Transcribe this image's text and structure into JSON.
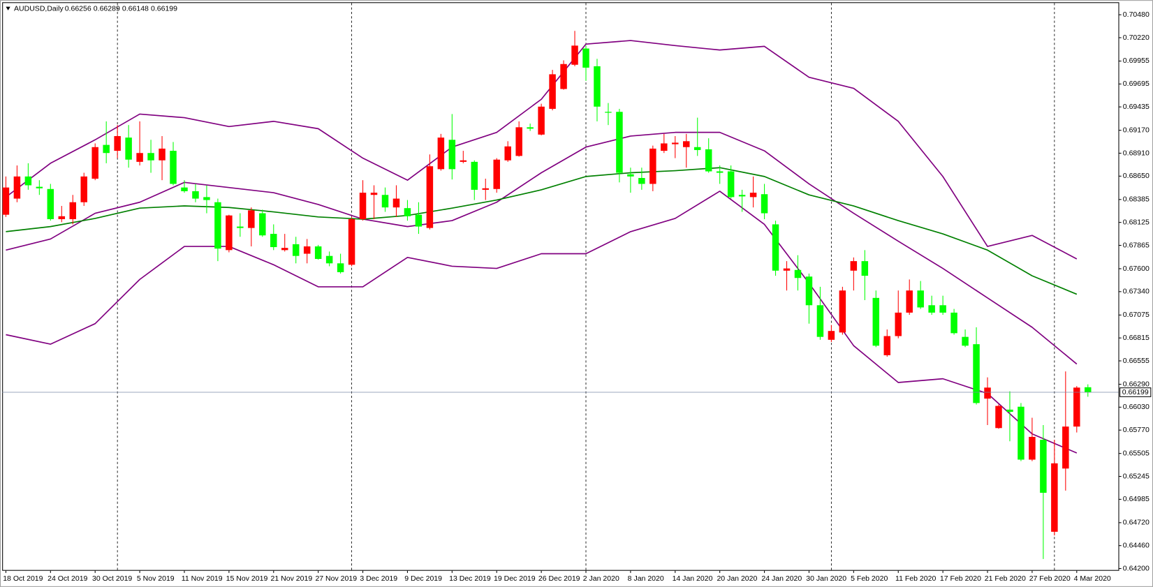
{
  "chart_data": {
    "type": "candlestick",
    "title": "AUDUSD,Daily",
    "up_color": "#ff0000",
    "down_color": "#00ff00",
    "grid": false,
    "ylim": [
      0.64175,
      0.70613
    ],
    "yticks": [
      {
        "value": 0.7048,
        "label": "0.70480"
      },
      {
        "value": 0.7022,
        "label": "0.70220"
      },
      0.69955,
      0.69695,
      0.69435,
      {
        "value": 0.6917,
        "label": "0.69170"
      },
      {
        "value": 0.6891,
        "label": "0.68910"
      },
      {
        "value": 0.6865,
        "label": "0.68650"
      },
      0.68385,
      0.68125,
      0.67865,
      {
        "value": 0.676,
        "label": "0.67600"
      },
      {
        "value": 0.6734,
        "label": "0.67340"
      },
      0.67075,
      0.66815,
      0.66555,
      {
        "value": 0.6629,
        "label": "0.66290"
      },
      {
        "value": 0.6603,
        "label": "0.66030"
      },
      {
        "value": 0.6577,
        "label": "0.65770"
      },
      0.65505,
      0.65245,
      0.64985,
      {
        "value": 0.6472,
        "label": "0.64720"
      },
      {
        "value": 0.6446,
        "label": "0.64460"
      },
      {
        "value": 0.642,
        "label": "0.64200"
      }
    ],
    "categories": [
      "18 Oct 2019",
      null,
      null,
      null,
      "24 Oct 2019",
      null,
      null,
      null,
      "30 Oct 2019",
      null,
      null,
      null,
      "5 Nov 2019",
      null,
      null,
      null,
      "11 Nov 2019",
      null,
      null,
      null,
      "15 Nov 2019",
      null,
      null,
      null,
      "21 Nov 2019",
      null,
      null,
      null,
      "27 Nov 2019",
      null,
      null,
      null,
      "3 Dec 2019",
      null,
      null,
      null,
      "9 Dec 2019",
      null,
      null,
      null,
      "13 Dec 2019",
      null,
      null,
      null,
      "19 Dec 2019",
      null,
      null,
      null,
      "26 Dec 2019",
      null,
      null,
      null,
      "2 Jan 2020",
      null,
      null,
      null,
      "8 Jan 2020",
      null,
      null,
      null,
      "14 Jan 2020",
      null,
      null,
      null,
      "20 Jan 2020",
      null,
      null,
      null,
      "24 Jan 2020",
      null,
      null,
      null,
      "30 Jan 2020",
      null,
      null,
      null,
      "5 Feb 2020",
      null,
      null,
      null,
      "11 Feb 2020",
      null,
      null,
      null,
      "17 Feb 2020",
      null,
      null,
      null,
      "21 Feb 2020",
      null,
      null,
      null,
      "27 Feb 2020",
      null,
      null,
      null,
      "4 Mar 2020",
      null
    ],
    "open": [
      0.68212,
      0.68395,
      0.68646,
      0.68529,
      0.68504,
      0.68162,
      0.68162,
      0.68354,
      0.68621,
      0.69004,
      0.68937,
      0.69087,
      0.68812,
      0.68912,
      0.68829,
      0.68937,
      0.68521,
      0.68479,
      0.68412,
      0.68354,
      0.67811,
      0.68078,
      0.68062,
      0.68229,
      0.67995,
      0.67811,
      0.67878,
      0.6777,
      0.67853,
      0.67745,
      0.67661,
      0.67645,
      0.68162,
      0.68437,
      0.68437,
      0.68295,
      0.68287,
      0.68212,
      0.68062,
      0.68729,
      0.69062,
      0.68812,
      0.68812,
      0.68495,
      0.68504,
      0.68829,
      0.68879,
      0.69204,
      0.69121,
      0.69413,
      0.69638,
      0.69913,
      0.70097,
      0.69896,
      0.69379,
      0.69379,
      0.68671,
      0.68629,
      0.68562,
      0.68937,
      0.69012,
      0.68979,
      0.68979,
      0.68954,
      0.68704,
      0.68704,
      0.68437,
      0.68412,
      0.68445,
      0.68103,
      0.67578,
      0.67586,
      0.67511,
      0.67186,
      0.66794,
      0.66877,
      0.67578,
      0.67686,
      0.67269,
      0.66619,
      0.66836,
      0.67102,
      0.67353,
      0.67186,
      0.67186,
      0.67102,
      0.66827,
      0.66744,
      0.66127,
      0.65793,
      0.66002,
      0.66035,
      0.65435,
      0.6566,
      0.64617,
      0.65334,
      0.6581,
      0.66256
    ],
    "high": [
      0.68646,
      0.68771,
      0.68796,
      0.68604,
      0.68562,
      0.68312,
      0.68437,
      0.68688,
      0.69021,
      0.69271,
      0.69229,
      0.69229,
      0.69271,
      0.69062,
      0.69104,
      0.69037,
      0.68604,
      0.68562,
      0.68546,
      0.68395,
      0.68212,
      0.68229,
      0.68295,
      0.6827,
      0.68103,
      0.67995,
      0.67962,
      0.67937,
      0.6787,
      0.67795,
      0.6777,
      0.68187,
      0.68604,
      0.68546,
      0.68521,
      0.68546,
      0.68379,
      0.68354,
      0.68896,
      0.69129,
      0.69354,
      0.68937,
      0.68829,
      0.68621,
      0.68854,
      0.69046,
      0.69271,
      0.69246,
      0.69471,
      0.69855,
      0.69963,
      0.70297,
      0.7013,
      0.6998,
      0.69479,
      0.69413,
      0.68746,
      0.68746,
      0.68996,
      0.69129,
      0.69104,
      0.69129,
      0.69313,
      0.69079,
      0.68771,
      0.68771,
      0.68495,
      0.68646,
      0.68562,
      0.68145,
      0.67686,
      0.67753,
      0.67545,
      0.67395,
      0.66961,
      0.67395,
      0.67728,
      0.67811,
      0.67353,
      0.66911,
      0.67353,
      0.67478,
      0.67461,
      0.67294,
      0.67294,
      0.67144,
      0.66911,
      0.66936,
      0.66368,
      0.6606,
      0.6621,
      0.66077,
      0.6591,
      0.65827,
      0.6566,
      0.66435,
      0.66269,
      0.66289
    ],
    "low": [
      0.68187,
      0.68354,
      0.68495,
      0.68437,
      0.68145,
      0.68128,
      0.68103,
      0.68312,
      0.68604,
      0.68796,
      0.68854,
      0.68746,
      0.68771,
      0.68688,
      0.68604,
      0.68546,
      0.68462,
      0.68354,
      0.68229,
      0.67686,
      0.67786,
      0.67962,
      0.67853,
      0.67962,
      0.67811,
      0.67795,
      0.67661,
      0.67661,
      0.67703,
      0.67628,
      0.67545,
      0.67628,
      0.68145,
      0.68162,
      0.68245,
      0.68187,
      0.68145,
      0.67995,
      0.68045,
      0.68712,
      0.68612,
      0.68796,
      0.68379,
      0.68379,
      0.68462,
      0.68812,
      0.68871,
      0.69162,
      0.69112,
      0.69396,
      0.6963,
      0.69896,
      0.6973,
      0.69271,
      0.69229,
      0.68579,
      0.68462,
      0.68495,
      0.68479,
      0.68912,
      0.68854,
      0.68746,
      0.68879,
      0.68688,
      0.68562,
      0.68395,
      0.68245,
      0.68295,
      0.68162,
      0.6752,
      0.67353,
      0.67353,
      0.66977,
      0.66794,
      0.66769,
      0.66852,
      0.67353,
      0.67244,
      0.66711,
      0.66602,
      0.66811,
      0.67077,
      0.67144,
      0.67077,
      0.67077,
      0.66852,
      0.66711,
      0.6606,
      0.65827,
      0.65785,
      0.65643,
      0.65418,
      0.65418,
      0.64308,
      0.64575,
      0.65084,
      0.65743,
      0.66148
    ],
    "close": [
      0.68521,
      0.68646,
      0.68546,
      0.68512,
      0.68162,
      0.68195,
      0.68354,
      0.68646,
      0.68979,
      0.68912,
      0.69104,
      0.68837,
      0.68912,
      0.68829,
      0.68962,
      0.68562,
      0.68479,
      0.68395,
      0.68379,
      0.67828,
      0.68204,
      0.68062,
      0.68262,
      0.67978,
      0.67845,
      0.67836,
      0.67745,
      0.67853,
      0.67711,
      0.67661,
      0.67561,
      0.68162,
      0.68462,
      0.68462,
      0.68295,
      0.68395,
      0.68195,
      0.68078,
      0.68762,
      0.69087,
      0.68729,
      0.68829,
      0.68495,
      0.68512,
      0.68837,
      0.68987,
      0.69204,
      0.69188,
      0.69438,
      0.69805,
      0.69921,
      0.7013,
      0.6988,
      0.69438,
      0.69371,
      0.68688,
      0.68646,
      0.68562,
      0.68962,
      0.69021,
      0.69029,
      0.69046,
      0.68946,
      0.68704,
      0.68688,
      0.68412,
      0.6842,
      0.68462,
      0.68229,
      0.67578,
      0.67603,
      0.67495,
      0.67186,
      0.66827,
      0.66894,
      0.67353,
      0.67686,
      0.6752,
      0.66727,
      0.66836,
      0.67102,
      0.67353,
      0.67161,
      0.67102,
      0.67102,
      0.66869,
      0.66727,
      0.66077,
      0.66252,
      0.66044,
      0.65977,
      0.65435,
      0.65693,
      0.65059,
      0.65393,
      0.6581,
      0.66252,
      0.66199
    ],
    "overlay_x": [
      "18 Oct 2019",
      "24 Oct 2019",
      "30 Oct 2019",
      "5 Nov 2019",
      "11 Nov 2019",
      "15 Nov 2019",
      "21 Nov 2019",
      "27 Nov 2019",
      "3 Dec 2019",
      "9 Dec 2019",
      "13 Dec 2019",
      "19 Dec 2019",
      "26 Dec 2019",
      "2 Jan 2020",
      "8 Jan 2020",
      "14 Jan 2020",
      "20 Jan 2020",
      "24 Jan 2020",
      "30 Jan 2020",
      "5 Feb 2020",
      "11 Feb 2020",
      "17 Feb 2020",
      "21 Feb 2020",
      "27 Feb 2020",
      "4 Mar 2020"
    ],
    "overlays": [
      {
        "color": "#800080",
        "values": [
          0.68412,
          0.68796,
          0.69062,
          0.69354,
          0.69313,
          0.69212,
          0.69271,
          0.69188,
          0.68854,
          0.68604,
          0.68979,
          0.69146,
          0.69521,
          0.70147,
          0.70188,
          0.7013,
          0.7008,
          0.70122,
          0.69771,
          0.69646,
          0.69271,
          0.68646,
          0.67853,
          0.67978,
          0.67711
        ]
      },
      {
        "color": "#800080",
        "values": [
          0.67811,
          0.67937,
          0.68229,
          0.68354,
          0.68579,
          0.68521,
          0.68462,
          0.68329,
          0.68162,
          0.68078,
          0.68145,
          0.68354,
          0.68688,
          0.68979,
          0.69104,
          0.69146,
          0.69146,
          0.68937,
          0.68562,
          0.68229,
          0.67912,
          0.67603,
          0.67269,
          0.66936,
          0.66519
        ]
      },
      {
        "color": "#800080",
        "values": [
          0.66852,
          0.66744,
          0.66977,
          0.67478,
          0.67853,
          0.67853,
          0.67645,
          0.67395,
          0.67395,
          0.67728,
          0.67628,
          0.67603,
          0.6777,
          0.6777,
          0.6802,
          0.6817,
          0.68479,
          0.68103,
          0.67436,
          0.66727,
          0.6631,
          0.66352,
          0.66185,
          0.65727,
          0.6551
        ]
      },
      {
        "color": "#008000",
        "values": [
          0.6802,
          0.68078,
          0.6817,
          0.68287,
          0.68312,
          0.68295,
          0.68245,
          0.68187,
          0.68162,
          0.68204,
          0.68287,
          0.68379,
          0.68495,
          0.68646,
          0.68688,
          0.68712,
          0.68746,
          0.68646,
          0.68437,
          0.68312,
          0.68145,
          0.67995,
          0.67811,
          0.6752,
          0.67311
        ]
      }
    ]
  }
}
